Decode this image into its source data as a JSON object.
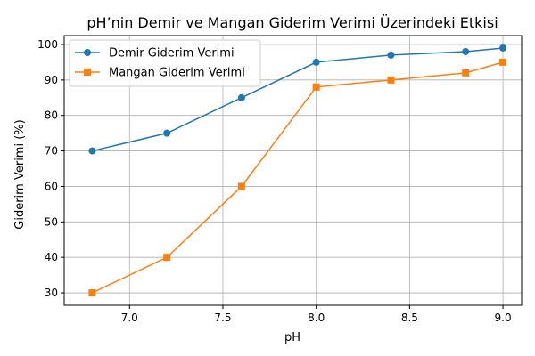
{
  "chart_data": {
    "type": "line",
    "title": "pH’nin Demir ve Mangan Giderim Verimi Üzerindeki Etkisi",
    "xlabel": "pH",
    "ylabel": "Giderim Verimi (%)",
    "xlim": [
      6.65,
      9.1
    ],
    "ylim": [
      26.5,
      102.5
    ],
    "xticks": [
      7.0,
      7.5,
      8.0,
      8.5,
      9.0
    ],
    "xtick_labels": [
      "7.0",
      "7.5",
      "8.0",
      "8.5",
      "9.0"
    ],
    "yticks": [
      30,
      40,
      50,
      60,
      70,
      80,
      90,
      100
    ],
    "ytick_labels": [
      "30",
      "40",
      "50",
      "60",
      "70",
      "80",
      "90",
      "100"
    ],
    "grid": true,
    "legend_position": "top-left",
    "x": [
      6.8,
      7.2,
      7.6,
      8.0,
      8.4,
      8.8,
      9.0
    ],
    "series": [
      {
        "name": "Demir Giderim Verimi",
        "values": [
          70,
          75,
          85,
          95,
          97,
          98,
          99
        ],
        "color": "#1f77b4",
        "marker": "circle"
      },
      {
        "name": "Mangan Giderim Verimi",
        "values": [
          30,
          40,
          60,
          88,
          90,
          92,
          95
        ],
        "color": "#ff7f0e",
        "marker": "square"
      }
    ]
  }
}
